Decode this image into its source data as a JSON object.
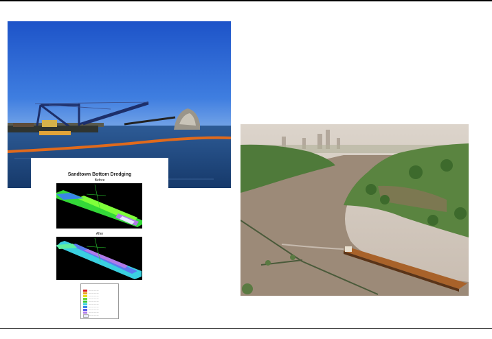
{
  "survey": {
    "title": "Sandtown Bottom Dredging",
    "before_label": "Before",
    "after_label": "After"
  },
  "colors": {
    "sky": "#2b63d4",
    "water": "#1d4a86",
    "boom": "#e06a1c",
    "river": "#9c8a78",
    "trees": "#4f7a3a"
  }
}
